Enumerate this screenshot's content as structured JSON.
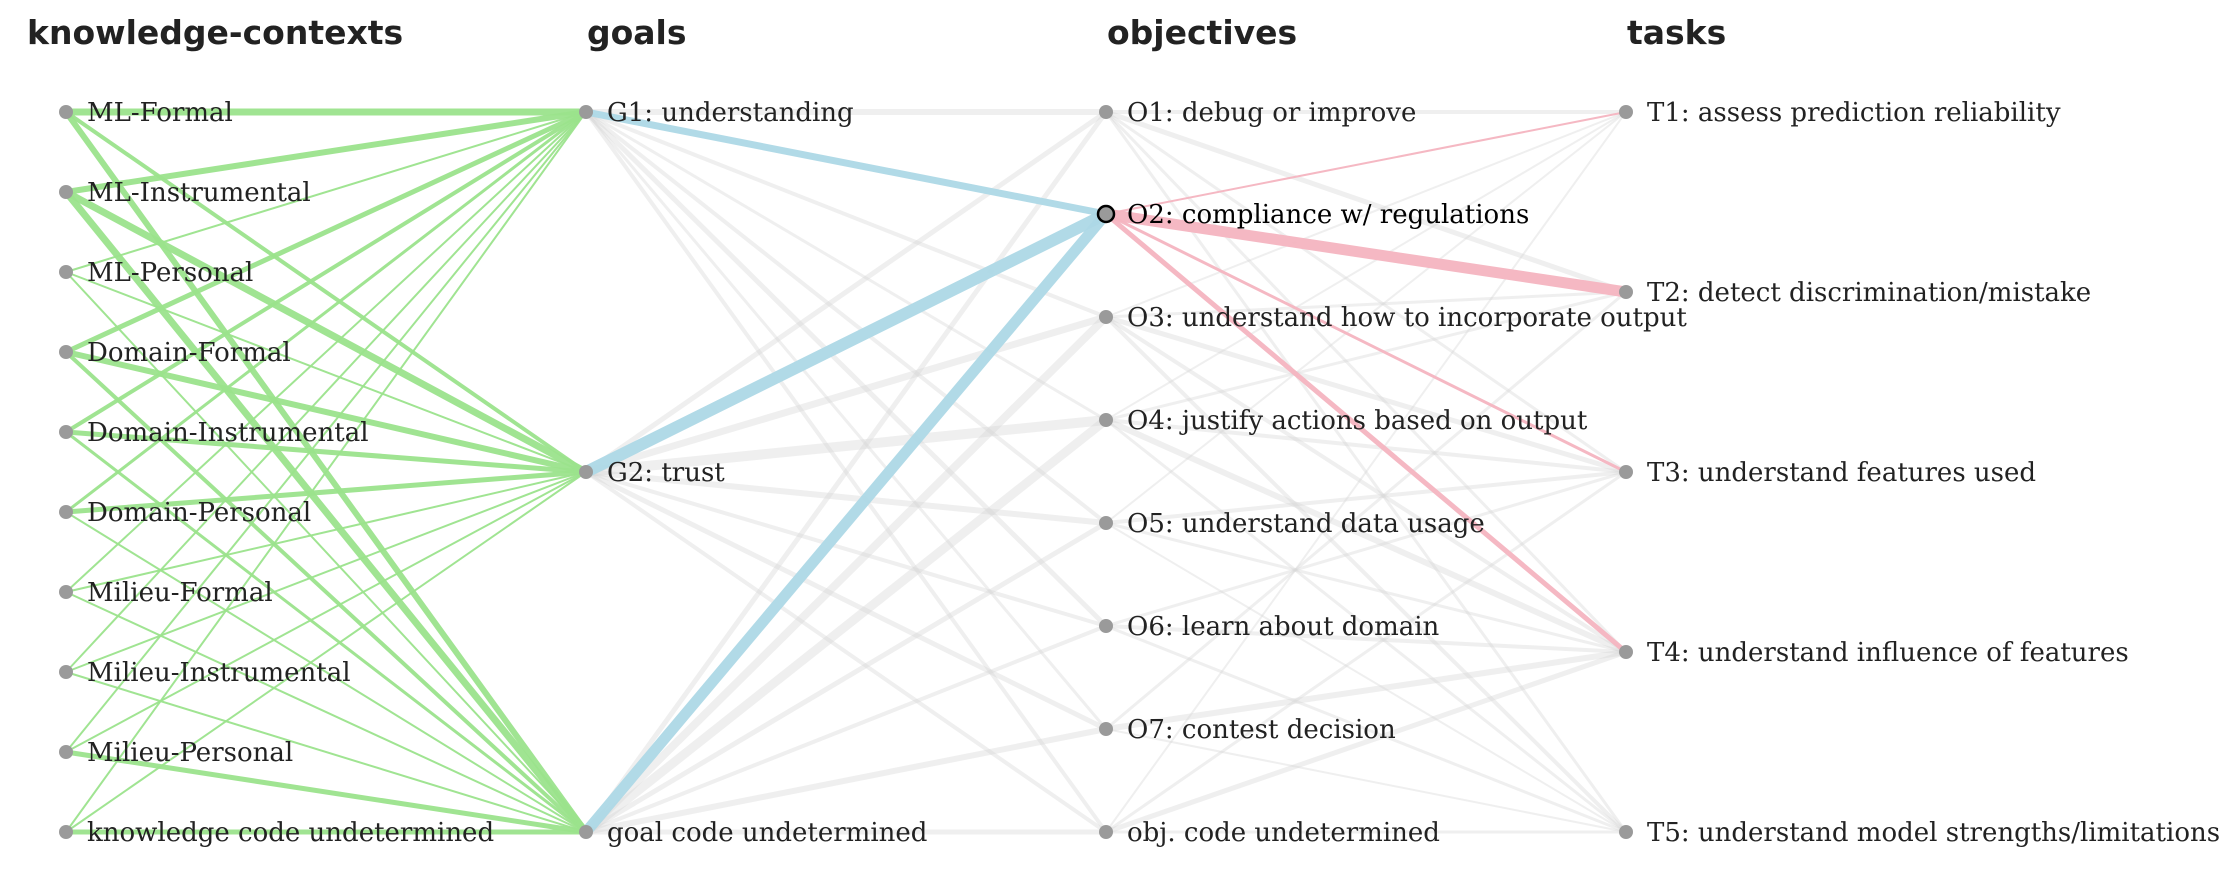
{
  "columns": [
    {
      "key": "knowledge",
      "title": "knowledge-contexts",
      "nodes": [
        "ML-Formal",
        "ML-Instrumental",
        "ML-Personal",
        "Domain-Formal",
        "Domain-Instrumental",
        "Domain-Personal",
        "Milieu-Formal",
        "Milieu-Instrumental",
        "Milieu-Personal",
        "knowledge code undetermined"
      ]
    },
    {
      "key": "goals",
      "title": "goals",
      "nodes": [
        "G1: understanding",
        "G2: trust",
        "goal code undetermined"
      ]
    },
    {
      "key": "objectives",
      "title": "objectives",
      "nodes": [
        "O1: debug or improve",
        "O2: compliance w/ regulations",
        "O3: understand how to incorporate output",
        "O4: justify actions based on output",
        "O5: understand data usage",
        "O6: learn about domain",
        "O7: contest decision",
        "obj. code undetermined"
      ]
    },
    {
      "key": "tasks",
      "title": "tasks",
      "nodes": [
        "T1: assess prediction reliability",
        "T2: detect discrimination/mistake",
        "T3: understand features used",
        "T4: understand influence of features",
        "T5: understand model strengths/limitations"
      ]
    }
  ],
  "selected": {
    "column": 2,
    "node": 1
  },
  "colors": {
    "knowledge_goal": "#9be38c",
    "goal_objective": "#add8e6",
    "objective_task": "#f4b4c0",
    "inactive": "#d8d8d8",
    "node": "#9a9a9a",
    "selected_stroke": "#000000"
  },
  "links": [
    {
      "from": [
        0,
        0
      ],
      "to": [
        1,
        0
      ],
      "w": 7,
      "hl": true
    },
    {
      "from": [
        0,
        0
      ],
      "to": [
        1,
        1
      ],
      "w": 4,
      "hl": true
    },
    {
      "from": [
        0,
        0
      ],
      "to": [
        1,
        2
      ],
      "w": 6,
      "hl": true
    },
    {
      "from": [
        0,
        1
      ],
      "to": [
        1,
        0
      ],
      "w": 6,
      "hl": true
    },
    {
      "from": [
        0,
        1
      ],
      "to": [
        1,
        1
      ],
      "w": 7,
      "hl": true
    },
    {
      "from": [
        0,
        1
      ],
      "to": [
        1,
        2
      ],
      "w": 7,
      "hl": true
    },
    {
      "from": [
        0,
        2
      ],
      "to": [
        1,
        0
      ],
      "w": 2,
      "hl": true
    },
    {
      "from": [
        0,
        2
      ],
      "to": [
        1,
        1
      ],
      "w": 2,
      "hl": true
    },
    {
      "from": [
        0,
        2
      ],
      "to": [
        1,
        2
      ],
      "w": 2,
      "hl": true
    },
    {
      "from": [
        0,
        3
      ],
      "to": [
        1,
        0
      ],
      "w": 5,
      "hl": true
    },
    {
      "from": [
        0,
        3
      ],
      "to": [
        1,
        1
      ],
      "w": 6,
      "hl": true
    },
    {
      "from": [
        0,
        3
      ],
      "to": [
        1,
        2
      ],
      "w": 4,
      "hl": true
    },
    {
      "from": [
        0,
        4
      ],
      "to": [
        1,
        0
      ],
      "w": 4,
      "hl": true
    },
    {
      "from": [
        0,
        4
      ],
      "to": [
        1,
        1
      ],
      "w": 5,
      "hl": true
    },
    {
      "from": [
        0,
        4
      ],
      "to": [
        1,
        2
      ],
      "w": 3,
      "hl": true
    },
    {
      "from": [
        0,
        5
      ],
      "to": [
        1,
        0
      ],
      "w": 3,
      "hl": true
    },
    {
      "from": [
        0,
        5
      ],
      "to": [
        1,
        1
      ],
      "w": 5,
      "hl": true
    },
    {
      "from": [
        0,
        5
      ],
      "to": [
        1,
        2
      ],
      "w": 2,
      "hl": true
    },
    {
      "from": [
        0,
        6
      ],
      "to": [
        1,
        0
      ],
      "w": 2,
      "hl": true
    },
    {
      "from": [
        0,
        6
      ],
      "to": [
        1,
        1
      ],
      "w": 2,
      "hl": true
    },
    {
      "from": [
        0,
        6
      ],
      "to": [
        1,
        2
      ],
      "w": 2,
      "hl": true
    },
    {
      "from": [
        0,
        7
      ],
      "to": [
        1,
        0
      ],
      "w": 2,
      "hl": true
    },
    {
      "from": [
        0,
        7
      ],
      "to": [
        1,
        1
      ],
      "w": 2,
      "hl": true
    },
    {
      "from": [
        0,
        7
      ],
      "to": [
        1,
        2
      ],
      "w": 2,
      "hl": true
    },
    {
      "from": [
        0,
        8
      ],
      "to": [
        1,
        0
      ],
      "w": 2,
      "hl": true
    },
    {
      "from": [
        0,
        8
      ],
      "to": [
        1,
        1
      ],
      "w": 2,
      "hl": true
    },
    {
      "from": [
        0,
        8
      ],
      "to": [
        1,
        2
      ],
      "w": 5,
      "hl": true
    },
    {
      "from": [
        0,
        9
      ],
      "to": [
        1,
        0
      ],
      "w": 2,
      "hl": true
    },
    {
      "from": [
        0,
        9
      ],
      "to": [
        1,
        1
      ],
      "w": 2,
      "hl": true
    },
    {
      "from": [
        0,
        9
      ],
      "to": [
        1,
        2
      ],
      "w": 5,
      "hl": true
    },
    {
      "from": [
        1,
        0
      ],
      "to": [
        2,
        0
      ],
      "w": 6,
      "hl": false
    },
    {
      "from": [
        1,
        0
      ],
      "to": [
        2,
        1
      ],
      "w": 7,
      "hl": true
    },
    {
      "from": [
        1,
        0
      ],
      "to": [
        2,
        2
      ],
      "w": 4,
      "hl": false
    },
    {
      "from": [
        1,
        0
      ],
      "to": [
        2,
        3
      ],
      "w": 3,
      "hl": false
    },
    {
      "from": [
        1,
        0
      ],
      "to": [
        2,
        4
      ],
      "w": 4,
      "hl": false
    },
    {
      "from": [
        1,
        0
      ],
      "to": [
        2,
        5
      ],
      "w": 5,
      "hl": false
    },
    {
      "from": [
        1,
        0
      ],
      "to": [
        2,
        6
      ],
      "w": 3,
      "hl": false
    },
    {
      "from": [
        1,
        0
      ],
      "to": [
        2,
        7
      ],
      "w": 4,
      "hl": false
    },
    {
      "from": [
        1,
        1
      ],
      "to": [
        2,
        0
      ],
      "w": 5,
      "hl": false
    },
    {
      "from": [
        1,
        1
      ],
      "to": [
        2,
        1
      ],
      "w": 12,
      "hl": true
    },
    {
      "from": [
        1,
        1
      ],
      "to": [
        2,
        2
      ],
      "w": 7,
      "hl": false
    },
    {
      "from": [
        1,
        1
      ],
      "to": [
        2,
        3
      ],
      "w": 10,
      "hl": false
    },
    {
      "from": [
        1,
        1
      ],
      "to": [
        2,
        4
      ],
      "w": 6,
      "hl": false
    },
    {
      "from": [
        1,
        1
      ],
      "to": [
        2,
        5
      ],
      "w": 4,
      "hl": false
    },
    {
      "from": [
        1,
        1
      ],
      "to": [
        2,
        6
      ],
      "w": 5,
      "hl": false
    },
    {
      "from": [
        1,
        1
      ],
      "to": [
        2,
        7
      ],
      "w": 4,
      "hl": false
    },
    {
      "from": [
        1,
        2
      ],
      "to": [
        2,
        0
      ],
      "w": 5,
      "hl": false
    },
    {
      "from": [
        1,
        2
      ],
      "to": [
        2,
        1
      ],
      "w": 11,
      "hl": true
    },
    {
      "from": [
        1,
        2
      ],
      "to": [
        2,
        2
      ],
      "w": 8,
      "hl": false
    },
    {
      "from": [
        1,
        2
      ],
      "to": [
        2,
        3
      ],
      "w": 9,
      "hl": false
    },
    {
      "from": [
        1,
        2
      ],
      "to": [
        2,
        4
      ],
      "w": 5,
      "hl": false
    },
    {
      "from": [
        1,
        2
      ],
      "to": [
        2,
        5
      ],
      "w": 4,
      "hl": false
    },
    {
      "from": [
        1,
        2
      ],
      "to": [
        2,
        6
      ],
      "w": 6,
      "hl": false
    },
    {
      "from": [
        1,
        2
      ],
      "to": [
        2,
        7
      ],
      "w": 5,
      "hl": false
    },
    {
      "from": [
        2,
        0
      ],
      "to": [
        3,
        0
      ],
      "w": 4,
      "hl": false
    },
    {
      "from": [
        2,
        0
      ],
      "to": [
        3,
        1
      ],
      "w": 5,
      "hl": false
    },
    {
      "from": [
        2,
        0
      ],
      "to": [
        3,
        2
      ],
      "w": 3,
      "hl": false
    },
    {
      "from": [
        2,
        0
      ],
      "to": [
        3,
        3
      ],
      "w": 3,
      "hl": false
    },
    {
      "from": [
        2,
        0
      ],
      "to": [
        3,
        4
      ],
      "w": 3,
      "hl": false
    },
    {
      "from": [
        2,
        1
      ],
      "to": [
        3,
        0
      ],
      "w": 2,
      "hl": true
    },
    {
      "from": [
        2,
        1
      ],
      "to": [
        3,
        1
      ],
      "w": 11,
      "hl": true
    },
    {
      "from": [
        2,
        1
      ],
      "to": [
        3,
        2
      ],
      "w": 3,
      "hl": true
    },
    {
      "from": [
        2,
        1
      ],
      "to": [
        3,
        3
      ],
      "w": 5,
      "hl": true
    },
    {
      "from": [
        2,
        2
      ],
      "to": [
        3,
        0
      ],
      "w": 2,
      "hl": false
    },
    {
      "from": [
        2,
        2
      ],
      "to": [
        3,
        1
      ],
      "w": 3,
      "hl": false
    },
    {
      "from": [
        2,
        2
      ],
      "to": [
        3,
        2
      ],
      "w": 5,
      "hl": false
    },
    {
      "from": [
        2,
        2
      ],
      "to": [
        3,
        3
      ],
      "w": 4,
      "hl": false
    },
    {
      "from": [
        2,
        2
      ],
      "to": [
        3,
        4
      ],
      "w": 4,
      "hl": false
    },
    {
      "from": [
        2,
        3
      ],
      "to": [
        3,
        0
      ],
      "w": 2,
      "hl": false
    },
    {
      "from": [
        2,
        3
      ],
      "to": [
        3,
        1
      ],
      "w": 3,
      "hl": false
    },
    {
      "from": [
        2,
        3
      ],
      "to": [
        3,
        2
      ],
      "w": 4,
      "hl": false
    },
    {
      "from": [
        2,
        3
      ],
      "to": [
        3,
        3
      ],
      "w": 6,
      "hl": false
    },
    {
      "from": [
        2,
        3
      ],
      "to": [
        3,
        4
      ],
      "w": 3,
      "hl": false
    },
    {
      "from": [
        2,
        4
      ],
      "to": [
        3,
        0
      ],
      "w": 2,
      "hl": false
    },
    {
      "from": [
        2,
        4
      ],
      "to": [
        3,
        2
      ],
      "w": 4,
      "hl": false
    },
    {
      "from": [
        2,
        4
      ],
      "to": [
        3,
        3
      ],
      "w": 3,
      "hl": false
    },
    {
      "from": [
        2,
        4
      ],
      "to": [
        3,
        4
      ],
      "w": 2,
      "hl": false
    },
    {
      "from": [
        2,
        5
      ],
      "to": [
        3,
        2
      ],
      "w": 3,
      "hl": false
    },
    {
      "from": [
        2,
        5
      ],
      "to": [
        3,
        3
      ],
      "w": 4,
      "hl": false
    },
    {
      "from": [
        2,
        5
      ],
      "to": [
        3,
        4
      ],
      "w": 3,
      "hl": false
    },
    {
      "from": [
        2,
        6
      ],
      "to": [
        3,
        1
      ],
      "w": 3,
      "hl": false
    },
    {
      "from": [
        2,
        6
      ],
      "to": [
        3,
        3
      ],
      "w": 6,
      "hl": false
    },
    {
      "from": [
        2,
        6
      ],
      "to": [
        3,
        4
      ],
      "w": 2,
      "hl": false
    },
    {
      "from": [
        2,
        7
      ],
      "to": [
        3,
        0
      ],
      "w": 2,
      "hl": false
    },
    {
      "from": [
        2,
        7
      ],
      "to": [
        3,
        2
      ],
      "w": 3,
      "hl": false
    },
    {
      "from": [
        2,
        7
      ],
      "to": [
        3,
        3
      ],
      "w": 5,
      "hl": false
    },
    {
      "from": [
        2,
        7
      ],
      "to": [
        3,
        4
      ],
      "w": 3,
      "hl": false
    }
  ]
}
